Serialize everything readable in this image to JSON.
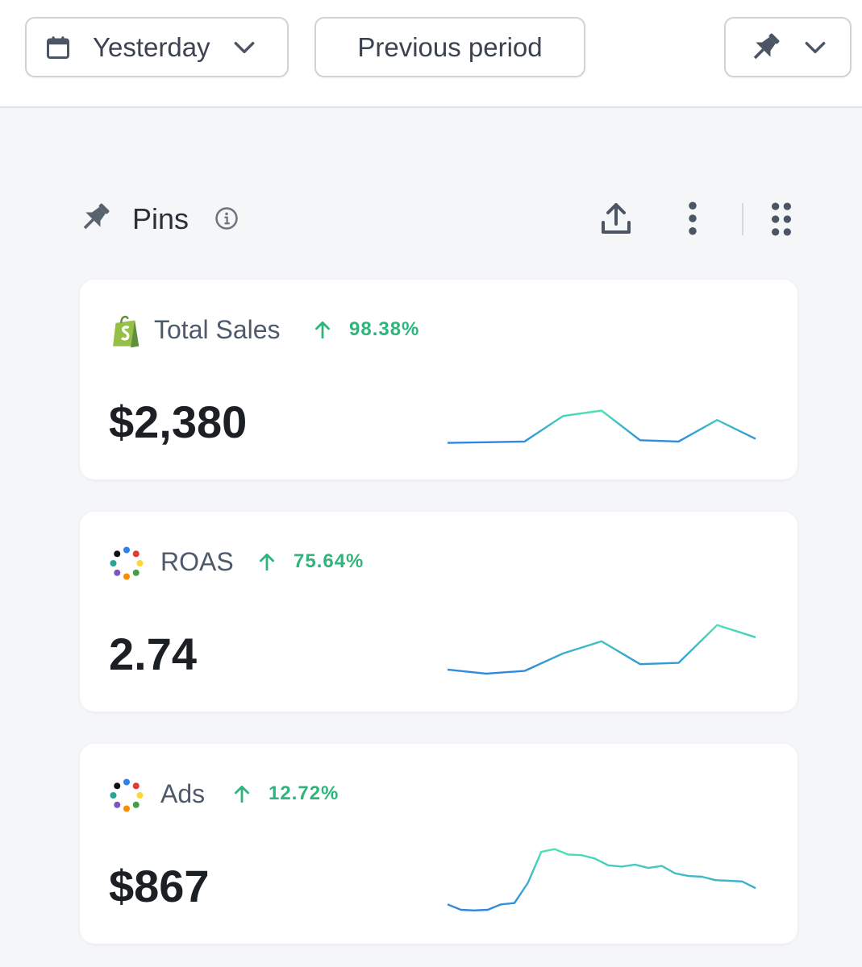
{
  "toolbar": {
    "date_label": "Yesterday",
    "compare_label": "Previous period"
  },
  "section": {
    "title": "Pins"
  },
  "cards": [
    {
      "label": "Total Sales",
      "change": "98.38%",
      "value": "$2,380",
      "icon": "shopify-icon",
      "trend": [
        8,
        8.5,
        9,
        28,
        32,
        10,
        9,
        25,
        11
      ]
    },
    {
      "label": "ROAS",
      "change": "75.64%",
      "value": "2.74",
      "icon": "multicolor-dots-icon",
      "trend": [
        12,
        9,
        11,
        24,
        33,
        16,
        17,
        45,
        36
      ]
    },
    {
      "label": "Ads",
      "change": "12.72%",
      "value": "$867",
      "icon": "multicolor-dots-icon",
      "trend": [
        10,
        6,
        5.5,
        6,
        10,
        11,
        26,
        49,
        51,
        47,
        46.5,
        44,
        39,
        38,
        39.5,
        37,
        38.5,
        33,
        31,
        30.5,
        28,
        27.5,
        27,
        22
      ]
    }
  ],
  "colors": {
    "accent_green": "#2fb57b",
    "spark_start": "#2e86de",
    "spark_end": "#4ee3b5"
  }
}
